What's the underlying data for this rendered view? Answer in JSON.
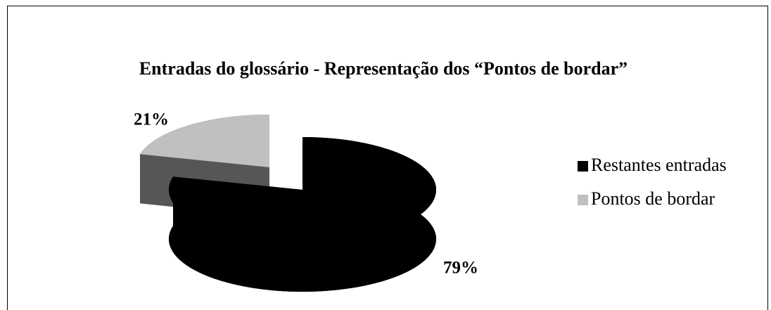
{
  "chart_data": {
    "type": "pie",
    "title": "Entradas do glossário - Representação dos “Pontos de bordar”",
    "categories": [
      "Restantes entradas",
      "Pontos de bordar"
    ],
    "values": [
      79,
      21
    ],
    "value_labels": [
      "79%",
      "21%"
    ],
    "colors": [
      "#000000",
      "#c0c0c0"
    ],
    "legend": "right"
  }
}
